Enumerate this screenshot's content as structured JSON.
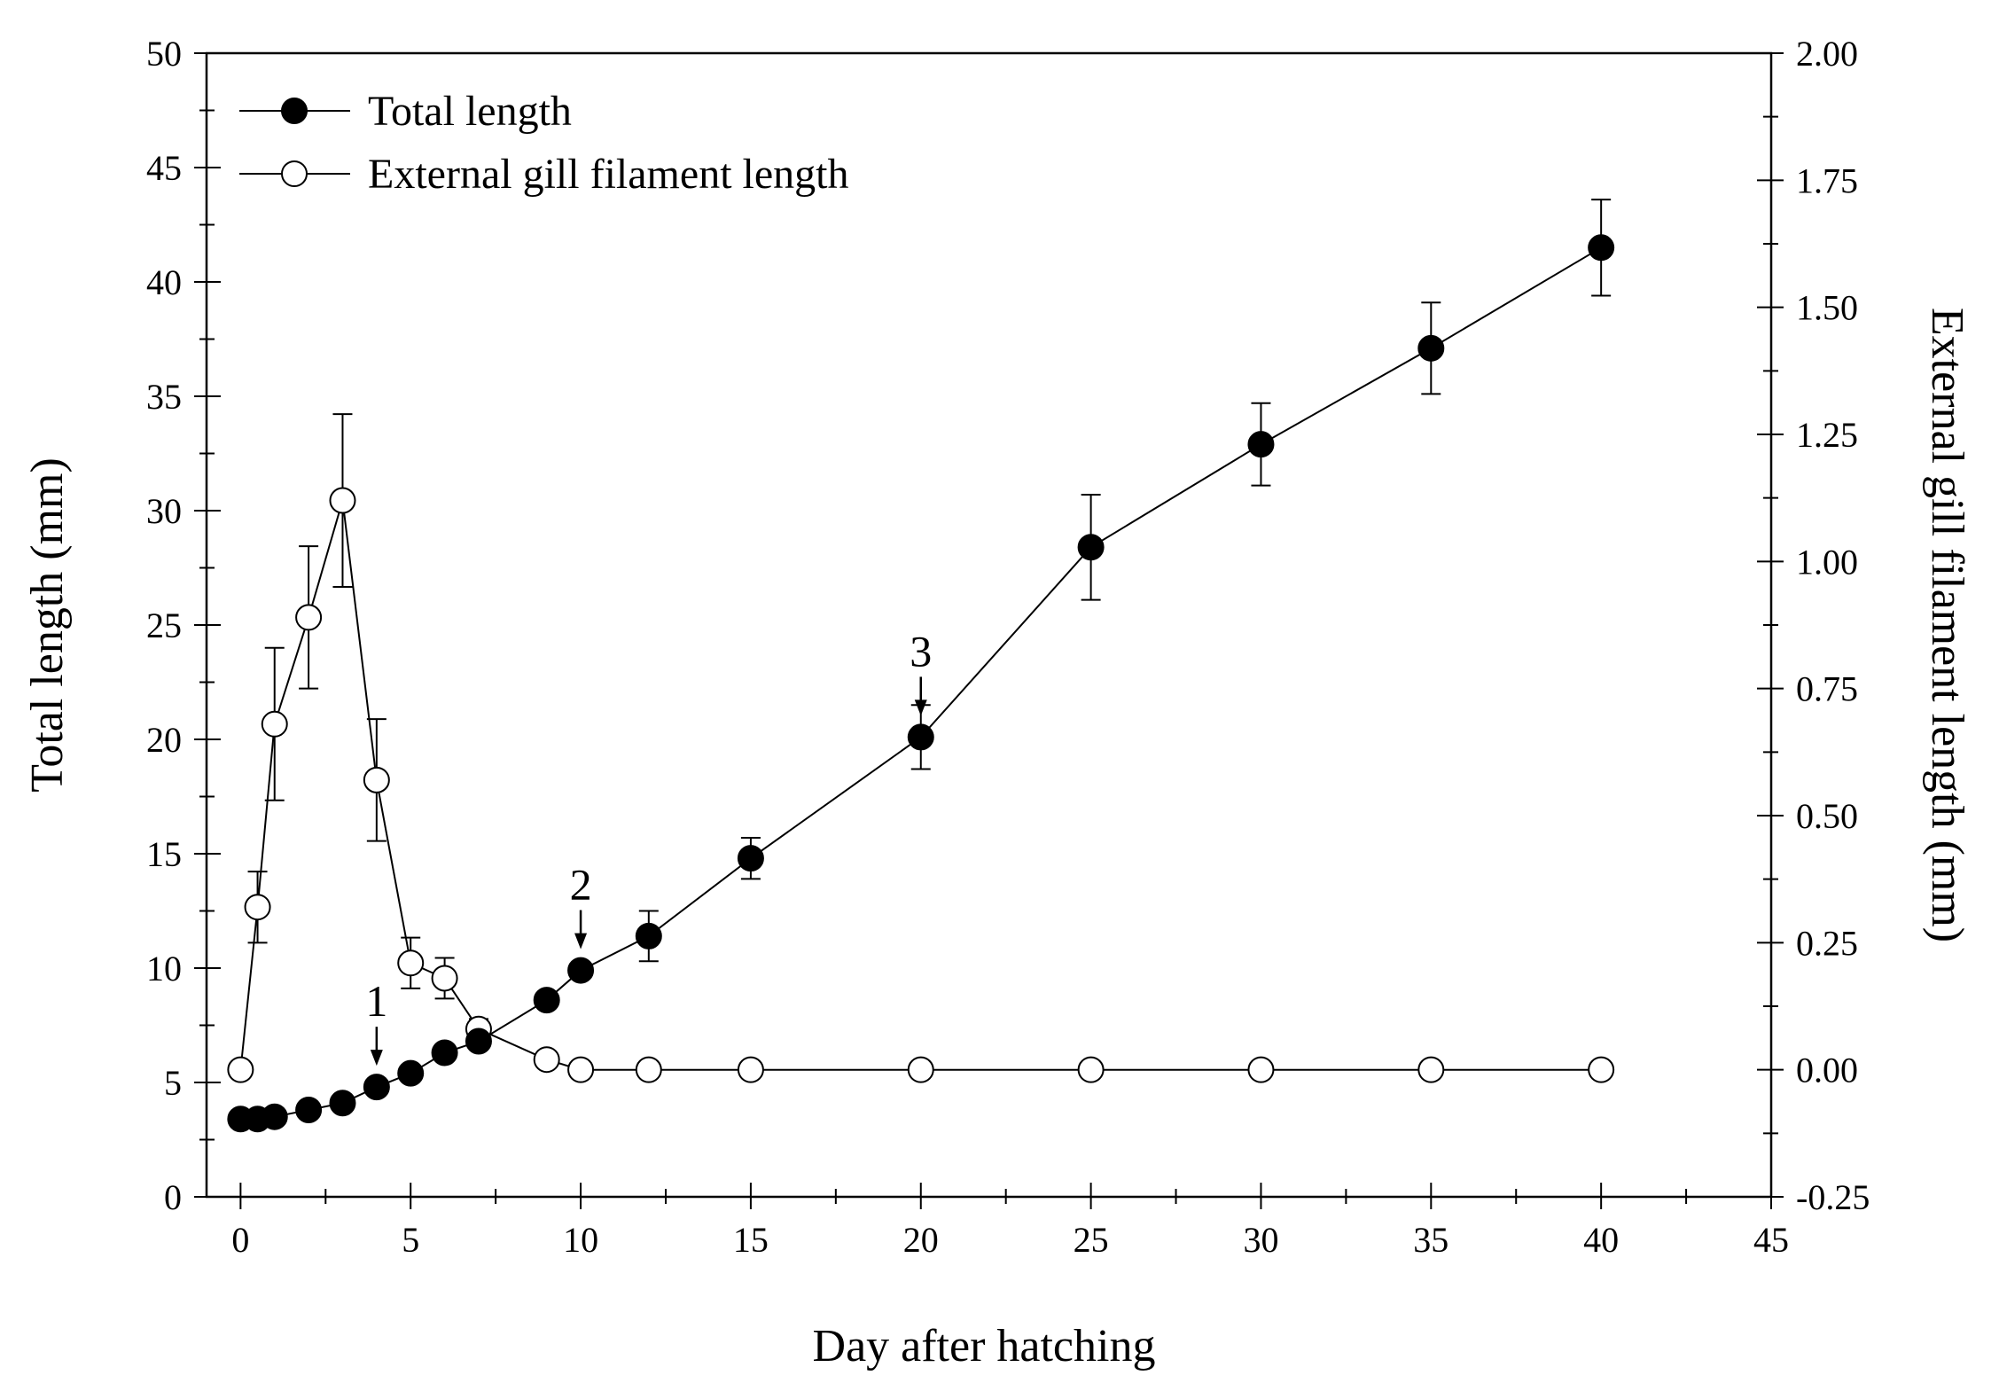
{
  "chart_data": {
    "type": "line",
    "x_axis": {
      "label": "Day after hatching",
      "range": [
        -1,
        45
      ],
      "ticks": [
        0,
        5,
        10,
        15,
        20,
        25,
        30,
        35,
        40,
        45
      ],
      "tick_labels": [
        "0",
        "5",
        "10",
        "15",
        "20",
        "25",
        "30",
        "35",
        "40",
        "45"
      ]
    },
    "y_axis_left": {
      "label": "Total length (mm)",
      "range": [
        0,
        50
      ],
      "ticks": [
        0,
        5,
        10,
        15,
        20,
        25,
        30,
        35,
        40,
        45,
        50
      ],
      "tick_labels": [
        "0",
        "5",
        "10",
        "15",
        "20",
        "25",
        "30",
        "35",
        "40",
        "45",
        "50"
      ]
    },
    "y_axis_right": {
      "label": "External gill filament length (mm)",
      "range": [
        -0.25,
        2.0
      ],
      "ticks": [
        -0.25,
        0,
        0.25,
        0.5,
        0.75,
        1.0,
        1.25,
        1.5,
        1.75,
        2.0
      ],
      "tick_labels": [
        "-0.25",
        "0.00",
        "0.25",
        "0.50",
        "0.75",
        "1.00",
        "1.25",
        "1.50",
        "1.75",
        "2.00"
      ]
    },
    "legend": {
      "position": "top-left"
    },
    "series": [
      {
        "name": "Total length",
        "marker": "filled-circle",
        "axis": "left",
        "points": [
          {
            "x": 0,
            "y": 3.4,
            "err": 0
          },
          {
            "x": 0.5,
            "y": 3.4,
            "err": 0
          },
          {
            "x": 1,
            "y": 3.5,
            "err": 0
          },
          {
            "x": 2,
            "y": 3.8,
            "err": 0
          },
          {
            "x": 3,
            "y": 4.1,
            "err": 0
          },
          {
            "x": 4,
            "y": 4.8,
            "err": 0
          },
          {
            "x": 5,
            "y": 5.4,
            "err": 0
          },
          {
            "x": 6,
            "y": 6.3,
            "err": 0
          },
          {
            "x": 7,
            "y": 6.8,
            "err": 0
          },
          {
            "x": 9,
            "y": 8.6,
            "err": 0
          },
          {
            "x": 10,
            "y": 9.9,
            "err": 0
          },
          {
            "x": 12,
            "y": 11.4,
            "err": 1.1
          },
          {
            "x": 15,
            "y": 14.8,
            "err": 0.9
          },
          {
            "x": 20,
            "y": 20.1,
            "err": 1.4
          },
          {
            "x": 25,
            "y": 28.4,
            "err": 2.3
          },
          {
            "x": 30,
            "y": 32.9,
            "err": 1.8
          },
          {
            "x": 35,
            "y": 37.1,
            "err": 2.0
          },
          {
            "x": 40,
            "y": 41.5,
            "err": 2.1
          }
        ]
      },
      {
        "name": "External gill filament length",
        "marker": "open-circle",
        "axis": "right",
        "points": [
          {
            "x": 0,
            "y": 0.0,
            "err": 0
          },
          {
            "x": 0.5,
            "y": 0.32,
            "err": 0.07
          },
          {
            "x": 1,
            "y": 0.68,
            "err": 0.15
          },
          {
            "x": 2,
            "y": 0.89,
            "err": 0.14
          },
          {
            "x": 3,
            "y": 1.12,
            "err": 0.17
          },
          {
            "x": 4,
            "y": 0.57,
            "err": 0.12
          },
          {
            "x": 5,
            "y": 0.21,
            "err": 0.05
          },
          {
            "x": 6,
            "y": 0.18,
            "err": 0.04
          },
          {
            "x": 7,
            "y": 0.08,
            "err": 0.02
          },
          {
            "x": 9,
            "y": 0.02,
            "err": 0
          },
          {
            "x": 10,
            "y": 0.0,
            "err": 0
          },
          {
            "x": 12,
            "y": 0.0,
            "err": 0
          },
          {
            "x": 15,
            "y": 0.0,
            "err": 0
          },
          {
            "x": 20,
            "y": 0.0,
            "err": 0
          },
          {
            "x": 25,
            "y": 0.0,
            "err": 0
          },
          {
            "x": 30,
            "y": 0.0,
            "err": 0
          },
          {
            "x": 35,
            "y": 0.0,
            "err": 0
          },
          {
            "x": 40,
            "y": 0.0,
            "err": 0
          }
        ]
      }
    ],
    "annotations": [
      {
        "label": "1",
        "x": 4,
        "y": 4.8
      },
      {
        "label": "2",
        "x": 10,
        "y": 9.9
      },
      {
        "label": "3",
        "x": 20,
        "y": 20.1
      }
    ]
  }
}
